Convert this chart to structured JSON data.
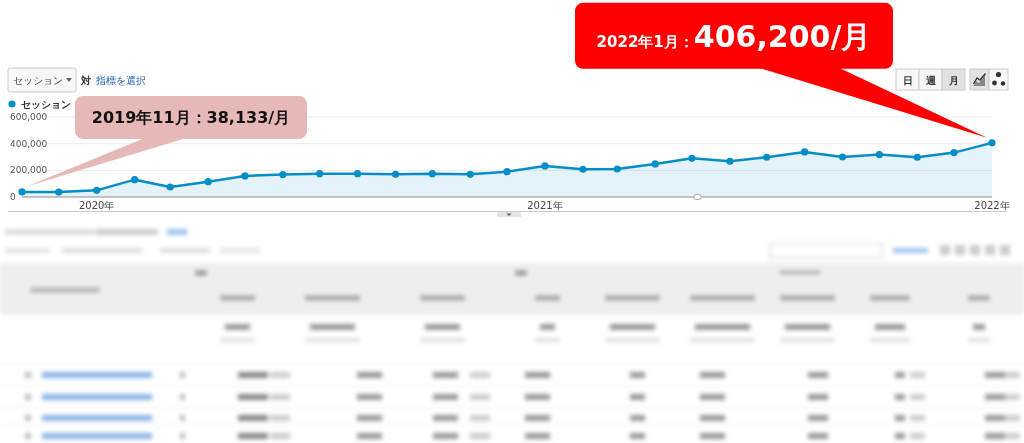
{
  "chart_data": {
    "type": "area",
    "x": [
      "2019-11",
      "2019-12",
      "2020-01",
      "2020-02",
      "2020-03",
      "2020-04",
      "2020-05",
      "2020-06",
      "2020-07",
      "2020-08",
      "2020-09",
      "2020-10",
      "2020-11",
      "2020-12",
      "2021-01",
      "2021-02",
      "2021-03",
      "2021-04",
      "2021-05",
      "2021-06",
      "2021-07",
      "2021-08",
      "2021-09",
      "2021-10",
      "2021-11",
      "2021-12",
      "2022-01"
    ],
    "series": [
      {
        "name": "セッション",
        "color": "#058dc7",
        "values": [
          38133,
          37000,
          50000,
          130000,
          75000,
          115000,
          158000,
          168000,
          175000,
          175000,
          170000,
          175000,
          170000,
          190000,
          233000,
          208000,
          210000,
          248000,
          290000,
          268000,
          298000,
          338000,
          300000,
          318000,
          298000,
          333000,
          406200
        ]
      }
    ],
    "xlim": [
      "2019-11",
      "2022-01"
    ],
    "xticks": [
      {
        "value": "2020-01",
        "label": "2020年"
      },
      {
        "value": "2021-01",
        "label": "2021年"
      },
      {
        "value": "2022-01",
        "label": "2022年"
      }
    ],
    "ylim": [
      0,
      600000
    ],
    "yticks": [
      0,
      {
        "value": 200000,
        "label": "200,000"
      },
      {
        "value": 400000,
        "label": "400,000"
      },
      {
        "value": 600000,
        "label": "600,000"
      }
    ],
    "grid": "y",
    "legend": "top left",
    "marker": "circle",
    "annotations": [
      {
        "text": "2019年11月：38,133/月",
        "x": "2019-11",
        "y": 38133
      },
      {
        "text": "2022年1月：406,200/月",
        "x": "2022-01",
        "y": 406200
      },
      "セッション",
      "対",
      "指標を選択",
      "日",
      "週",
      "月"
    ]
  }
}
